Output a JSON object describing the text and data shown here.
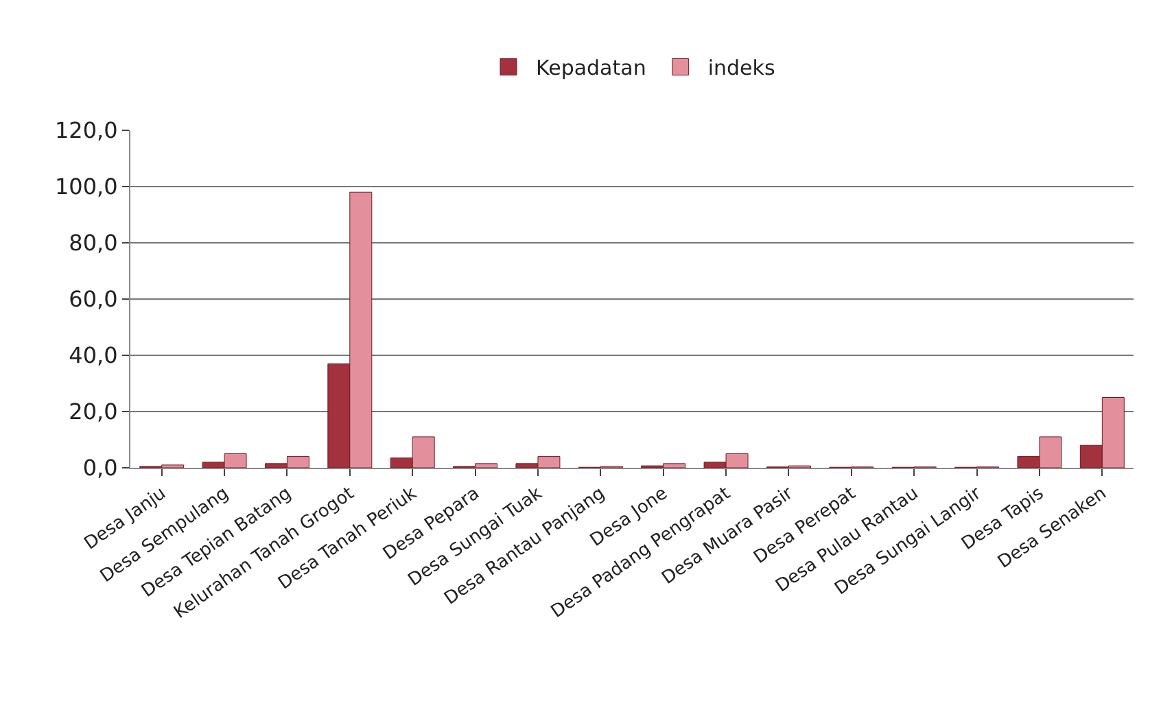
{
  "chart_data": {
    "type": "bar",
    "categories": [
      "Desa Janju",
      "Desa Sempulang",
      "Desa Tepian Batang",
      "Kelurahan Tanah Grogot",
      "Desa Tanah Periuk",
      "Desa Pepara",
      "Desa Sungai Tuak",
      "Desa Rantau Panjang",
      "Desa Jone",
      "Desa Padang Pengrapat",
      "Desa Muara Pasir",
      "Desa Perepat",
      "Desa Pulau Rantau",
      "Desa Sungai Langir",
      "Desa Tapis",
      "Desa Senaken"
    ],
    "series": [
      {
        "name": "Kepadatan",
        "color": "#a3323e",
        "values": [
          0.5,
          2,
          1.5,
          37,
          3.5,
          0.5,
          1.5,
          0.2,
          0.7,
          2,
          0.3,
          0.2,
          0.2,
          0.2,
          4,
          8
        ]
      },
      {
        "name": "indeks",
        "color": "#e3909c",
        "values": [
          1,
          5,
          4,
          98,
          11,
          1.5,
          4,
          0.5,
          1.5,
          5,
          0.7,
          0.3,
          0.3,
          0.3,
          11,
          25
        ]
      }
    ],
    "ylim": [
      0,
      120
    ],
    "yticks": [
      {
        "value": 0,
        "label": "0,0"
      },
      {
        "value": 20,
        "label": "20,0"
      },
      {
        "value": 40,
        "label": "40,0"
      },
      {
        "value": 60,
        "label": "60,0"
      },
      {
        "value": 80,
        "label": "80,0"
      },
      {
        "value": 100,
        "label": "100,0"
      },
      {
        "value": 120,
        "label": "120,0"
      }
    ],
    "grid": "y",
    "legend": "top"
  }
}
